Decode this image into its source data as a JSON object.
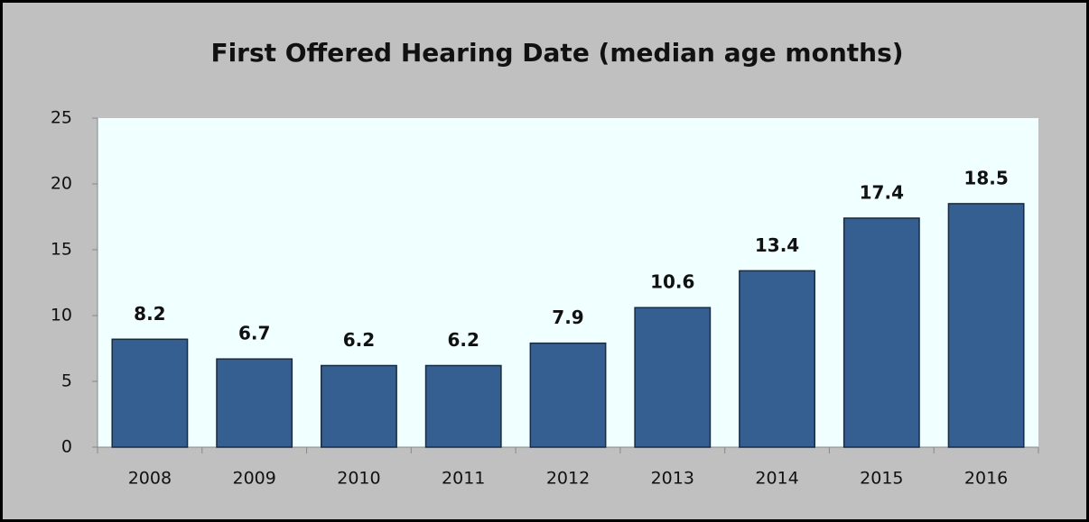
{
  "chart_data": {
    "type": "bar",
    "title": "First Offered Hearing Date (median age months)",
    "categories": [
      "2008",
      "2009",
      "2010",
      "2011",
      "2012",
      "2013",
      "2014",
      "2015",
      "2016"
    ],
    "values": [
      8.2,
      6.7,
      6.2,
      6.2,
      7.9,
      10.6,
      13.4,
      17.4,
      18.5
    ],
    "color": "#365f91",
    "ylim": [
      0,
      25
    ],
    "yticks": [
      0,
      5,
      10,
      15,
      20,
      25
    ],
    "grid": false
  }
}
